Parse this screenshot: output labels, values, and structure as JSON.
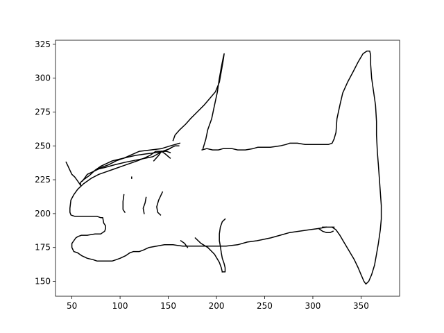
{
  "chart_data": {
    "type": "line",
    "title": "",
    "xlabel": "",
    "ylabel": "",
    "xlim": [
      33,
      390
    ],
    "ylim": [
      139,
      328
    ],
    "xticks": [
      50,
      100,
      150,
      200,
      250,
      300,
      350
    ],
    "yticks": [
      150,
      175,
      200,
      225,
      250,
      275,
      300,
      325
    ],
    "grid": false,
    "line_color": "#000000",
    "series": [
      {
        "points": [
          [
            59,
            221
          ],
          [
            59,
            223
          ],
          [
            62,
            225
          ],
          [
            64,
            226
          ],
          [
            68,
            228
          ],
          [
            71,
            230
          ],
          [
            74,
            232
          ],
          [
            80,
            235
          ],
          [
            92,
            239
          ],
          [
            104,
            241
          ],
          [
            120,
            246
          ],
          [
            132,
            247
          ],
          [
            143,
            248
          ],
          [
            152,
            250
          ],
          [
            157,
            251
          ],
          [
            162,
            252
          ]
        ]
      },
      {
        "points": [
          [
            161,
            250
          ],
          [
            157,
            250
          ],
          [
            154,
            249
          ],
          [
            146,
            246
          ],
          [
            137,
            245
          ],
          [
            126,
            244
          ],
          [
            116,
            243
          ],
          [
            110,
            242
          ],
          [
            104,
            241
          ],
          [
            96,
            239
          ],
          [
            88,
            236
          ],
          [
            80,
            234
          ],
          [
            72,
            231
          ]
        ]
      },
      {
        "points": [
          [
            152,
            248
          ],
          [
            144,
            246
          ],
          [
            134,
            242
          ],
          [
            120,
            240
          ],
          [
            106,
            238
          ],
          [
            94,
            236
          ],
          [
            84,
            234
          ],
          [
            78,
            233
          ],
          [
            72,
            231
          ],
          [
            66,
            229
          ],
          [
            64,
            227
          ],
          [
            61,
            224
          ]
        ]
      },
      {
        "points": [
          [
            59,
            221
          ],
          [
            56,
            224
          ],
          [
            53,
            227
          ],
          [
            50,
            229
          ],
          [
            48,
            232
          ],
          [
            46,
            235
          ],
          [
            44,
            238
          ]
        ]
      },
      {
        "points": [
          [
            152,
            245
          ],
          [
            148,
            246
          ],
          [
            142,
            246
          ],
          [
            137,
            246
          ],
          [
            131,
            243
          ],
          [
            125,
            241
          ],
          [
            118,
            239
          ],
          [
            110,
            237
          ],
          [
            102,
            235
          ],
          [
            94,
            233
          ],
          [
            86,
            231
          ],
          [
            78,
            229
          ],
          [
            70,
            226
          ],
          [
            62,
            222
          ],
          [
            56,
            218
          ],
          [
            52,
            214
          ],
          [
            49,
            210
          ],
          [
            48,
            204
          ],
          [
            48,
            201
          ],
          [
            49,
            199
          ],
          [
            53,
            198
          ],
          [
            56,
            198
          ],
          [
            62,
            198
          ],
          [
            68,
            198
          ],
          [
            76,
            198
          ],
          [
            80,
            197
          ],
          [
            82,
            197
          ],
          [
            83,
            193
          ],
          [
            85,
            191
          ],
          [
            85,
            189
          ],
          [
            84,
            187
          ],
          [
            82,
            186
          ],
          [
            80,
            185
          ],
          [
            74,
            185
          ],
          [
            66,
            184
          ],
          [
            60,
            184
          ],
          [
            56,
            183
          ],
          [
            54,
            182
          ],
          [
            52,
            180
          ],
          [
            50,
            178
          ],
          [
            50,
            175
          ],
          [
            52,
            172
          ],
          [
            56,
            171
          ],
          [
            60,
            169
          ],
          [
            66,
            167
          ],
          [
            72,
            166
          ],
          [
            76,
            165
          ],
          [
            80,
            165
          ],
          [
            84,
            165
          ],
          [
            88,
            165
          ],
          [
            92,
            165
          ],
          [
            96,
            166
          ],
          [
            100,
            167
          ],
          [
            106,
            169
          ],
          [
            110,
            171
          ],
          [
            114,
            172
          ],
          [
            120,
            172
          ],
          [
            124,
            173
          ],
          [
            130,
            175
          ],
          [
            138,
            176
          ],
          [
            146,
            177
          ],
          [
            155,
            177
          ],
          [
            165,
            176
          ],
          [
            175,
            176
          ],
          [
            186,
            176
          ],
          [
            196,
            176
          ],
          [
            210,
            176
          ],
          [
            222,
            177
          ],
          [
            232,
            179
          ],
          [
            242,
            180
          ],
          [
            256,
            182
          ],
          [
            266,
            184
          ],
          [
            276,
            186
          ],
          [
            286,
            187
          ],
          [
            296,
            188
          ],
          [
            306,
            189
          ],
          [
            314,
            190
          ]
        ]
      },
      {
        "points": [
          [
            143,
            246
          ],
          [
            147,
            244
          ],
          [
            152,
            241
          ]
        ]
      },
      {
        "points": [
          [
            143,
            246
          ],
          [
            140,
            243
          ],
          [
            135,
            239
          ]
        ]
      },
      {
        "points": [
          [
            112,
            227
          ],
          [
            112,
            226
          ]
        ]
      },
      {
        "points": [
          [
            104,
            214
          ],
          [
            103,
            209
          ],
          [
            103,
            203
          ],
          [
            105,
            201
          ]
        ]
      },
      {
        "points": [
          [
            127,
            212
          ],
          [
            126,
            208
          ],
          [
            124,
            204
          ],
          [
            125,
            200
          ]
        ]
      },
      {
        "points": [
          [
            144,
            216
          ],
          [
            140,
            210
          ],
          [
            138,
            205
          ],
          [
            139,
            201
          ],
          [
            142,
            199
          ]
        ]
      },
      {
        "points": [
          [
            163,
            180
          ],
          [
            167,
            178
          ],
          [
            170,
            175
          ]
        ]
      },
      {
        "points": [
          [
            178,
            182
          ],
          [
            184,
            178
          ],
          [
            191,
            175
          ],
          [
            198,
            170
          ],
          [
            203,
            164
          ],
          [
            205,
            160
          ],
          [
            206,
            157
          ]
        ]
      },
      {
        "points": [
          [
            206,
            157
          ],
          [
            209,
            157
          ],
          [
            209,
            160
          ],
          [
            208,
            163
          ],
          [
            206,
            167
          ],
          [
            205,
            171
          ],
          [
            204,
            176
          ],
          [
            203,
            180
          ],
          [
            203,
            185
          ],
          [
            204,
            190
          ],
          [
            206,
            194
          ],
          [
            209,
            196
          ]
        ]
      },
      {
        "points": [
          [
            185,
            247
          ],
          [
            190,
            248
          ],
          [
            196,
            247
          ],
          [
            202,
            247
          ],
          [
            207,
            248
          ],
          [
            216,
            248
          ],
          [
            222,
            247
          ],
          [
            230,
            247
          ],
          [
            238,
            248
          ],
          [
            243,
            249
          ],
          [
            250,
            249
          ],
          [
            256,
            249
          ],
          [
            266,
            250
          ],
          [
            272,
            251
          ],
          [
            276,
            252
          ],
          [
            284,
            252
          ],
          [
            292,
            251
          ],
          [
            300,
            251
          ],
          [
            308,
            251
          ],
          [
            316,
            251
          ],
          [
            320,
            252
          ],
          [
            322,
            255
          ]
        ]
      },
      {
        "points": [
          [
            186,
            248
          ],
          [
            189,
            255
          ],
          [
            191,
            262
          ],
          [
            195,
            270
          ],
          [
            198,
            280
          ],
          [
            201,
            290
          ],
          [
            203,
            300
          ],
          [
            205,
            308
          ],
          [
            207,
            315
          ],
          [
            208,
            318
          ],
          [
            207,
            313
          ],
          [
            205,
            305
          ],
          [
            203,
            297
          ],
          [
            199,
            290
          ],
          [
            193,
            285
          ],
          [
            187,
            280
          ],
          [
            180,
            275
          ],
          [
            173,
            270
          ],
          [
            168,
            266
          ],
          [
            162,
            262
          ],
          [
            157,
            258
          ],
          [
            155,
            254
          ]
        ]
      },
      {
        "points": [
          [
            322,
            255
          ],
          [
            324,
            260
          ],
          [
            325,
            270
          ],
          [
            328,
            280
          ],
          [
            331,
            289
          ],
          [
            336,
            297
          ],
          [
            342,
            305
          ],
          [
            347,
            312
          ],
          [
            352,
            318
          ],
          [
            356,
            320
          ],
          [
            359,
            320
          ],
          [
            360,
            317
          ],
          [
            360,
            310
          ],
          [
            361,
            300
          ],
          [
            363,
            290
          ],
          [
            365,
            280
          ],
          [
            366,
            268
          ],
          [
            366,
            258
          ],
          [
            367,
            245
          ],
          [
            368,
            236
          ],
          [
            369,
            226
          ],
          [
            370,
            216
          ],
          [
            371,
            206
          ],
          [
            371,
            196
          ],
          [
            370,
            188
          ],
          [
            368,
            178
          ],
          [
            366,
            170
          ],
          [
            364,
            162
          ],
          [
            361,
            155
          ],
          [
            358,
            150
          ],
          [
            355,
            148
          ],
          [
            353,
            150
          ],
          [
            350,
            155
          ],
          [
            347,
            160
          ],
          [
            343,
            166
          ],
          [
            338,
            172
          ],
          [
            333,
            178
          ],
          [
            328,
            184
          ],
          [
            324,
            188
          ],
          [
            320,
            190
          ]
        ]
      },
      {
        "points": [
          [
            306,
            189
          ],
          [
            310,
            187
          ],
          [
            314,
            186
          ],
          [
            318,
            186
          ],
          [
            321,
            187
          ]
        ]
      },
      {
        "points": [
          [
            310,
            190
          ],
          [
            316,
            190
          ],
          [
            322,
            190
          ]
        ]
      }
    ]
  }
}
